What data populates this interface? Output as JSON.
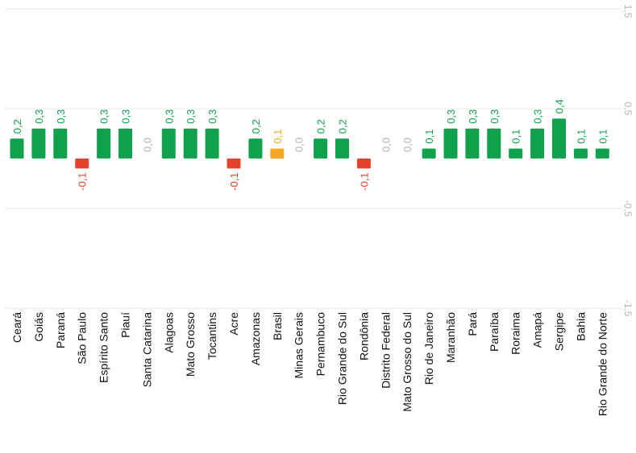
{
  "chart_data": {
    "type": "bar",
    "orientation": "vertical (rotated 90°)",
    "title": "",
    "xlabel": "",
    "ylabel": "",
    "ylim": [
      -1.5,
      1.5
    ],
    "ticks": [
      {
        "value": 1.5,
        "label": "1,5"
      },
      {
        "value": 0.5,
        "label": "0,5"
      },
      {
        "value": -0.5,
        "label": "-0,5"
      },
      {
        "value": -1.5,
        "label": "-1,5"
      }
    ],
    "grid": true,
    "colors": {
      "positive": "#0fa14b",
      "negative": "#e5412d",
      "highlight": "#f6a821",
      "zero": "#b3b3b3"
    },
    "bars": [
      {
        "category": "Ceará",
        "value": 0.2,
        "label": "0,2",
        "color": "#0fa14b"
      },
      {
        "category": "Goiás",
        "value": 0.3,
        "label": "0,3",
        "color": "#0fa14b"
      },
      {
        "category": "Paraná",
        "value": 0.3,
        "label": "0,3",
        "color": "#0fa14b"
      },
      {
        "category": "São Paulo",
        "value": -0.1,
        "label": "-0,1",
        "color": "#e5412d"
      },
      {
        "category": "Espírito Santo",
        "value": 0.3,
        "label": "0,3",
        "color": "#0fa14b"
      },
      {
        "category": "Piauí",
        "value": 0.3,
        "label": "0,3",
        "color": "#0fa14b"
      },
      {
        "category": "Santa Catarina",
        "value": 0.0,
        "label": "0,0",
        "color": "#b3b3b3"
      },
      {
        "category": "Alagoas",
        "value": 0.3,
        "label": "0,3",
        "color": "#0fa14b"
      },
      {
        "category": "Mato Grosso",
        "value": 0.3,
        "label": "0,3",
        "color": "#0fa14b"
      },
      {
        "category": "Tocantins",
        "value": 0.3,
        "label": "0,3",
        "color": "#0fa14b"
      },
      {
        "category": "Acre",
        "value": -0.1,
        "label": "-0,1",
        "color": "#e5412d"
      },
      {
        "category": "Amazonas",
        "value": 0.2,
        "label": "0,2",
        "color": "#0fa14b"
      },
      {
        "category": "Brasil",
        "value": 0.1,
        "label": "0,1",
        "color": "#f6a821"
      },
      {
        "category": "Minas Gerais",
        "value": 0.0,
        "label": "0,0",
        "color": "#b3b3b3"
      },
      {
        "category": "Pernambuco",
        "value": 0.2,
        "label": "0,2",
        "color": "#0fa14b"
      },
      {
        "category": "Rio Grande do Sul",
        "value": 0.2,
        "label": "0,2",
        "color": "#0fa14b"
      },
      {
        "category": "Rondônia",
        "value": -0.1,
        "label": "-0,1",
        "color": "#e5412d"
      },
      {
        "category": "Distrito Federal",
        "value": 0.0,
        "label": "0,0",
        "color": "#b3b3b3"
      },
      {
        "category": "Mato Grosso do Sul",
        "value": 0.0,
        "label": "0,0",
        "color": "#b3b3b3"
      },
      {
        "category": "Rio de Janeiro",
        "value": 0.1,
        "label": "0,1",
        "color": "#0fa14b"
      },
      {
        "category": "Maranhão",
        "value": 0.3,
        "label": "0,3",
        "color": "#0fa14b"
      },
      {
        "category": "Pará",
        "value": 0.3,
        "label": "0,3",
        "color": "#0fa14b"
      },
      {
        "category": "Paraíba",
        "value": 0.3,
        "label": "0,3",
        "color": "#0fa14b"
      },
      {
        "category": "Roraima",
        "value": 0.1,
        "label": "0,1",
        "color": "#0fa14b"
      },
      {
        "category": "Amapá",
        "value": 0.3,
        "label": "0,3",
        "color": "#0fa14b"
      },
      {
        "category": "Sergipe",
        "value": 0.4,
        "label": "0,4",
        "color": "#0fa14b"
      },
      {
        "category": "Bahia",
        "value": 0.1,
        "label": "0,1",
        "color": "#0fa14b"
      },
      {
        "category": "Rio Grande do Norte",
        "value": 0.1,
        "label": "0,1",
        "color": "#0fa14b"
      }
    ]
  }
}
